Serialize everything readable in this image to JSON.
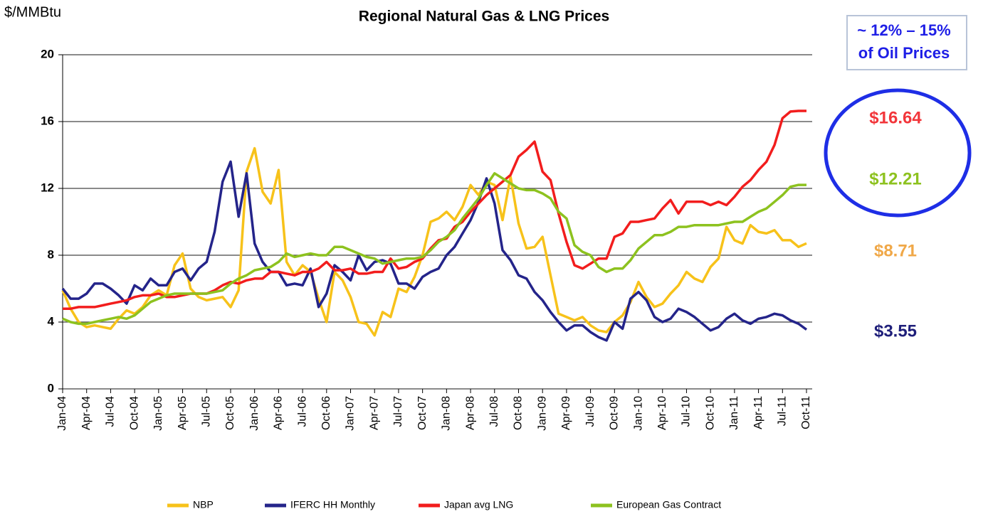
{
  "chart_data": {
    "type": "line",
    "title": "Regional Natural Gas & LNG Prices",
    "y_axis_label": "$/MMBtu",
    "callout": [
      "~ 12% – 15%",
      "of Oil Prices"
    ],
    "annotations": [
      {
        "text": "$16.64",
        "color": "#f2353a"
      },
      {
        "text": "$12.21",
        "color": "#8dc21f"
      },
      {
        "text": "$8.71",
        "color": "#f0a848"
      },
      {
        "text": "$3.55",
        "color": "#1f1f7a"
      }
    ],
    "categories": [
      "Jan-04",
      null,
      null,
      "Apr-04",
      null,
      null,
      "Jul-04",
      null,
      null,
      "Oct-04",
      null,
      null,
      "Jan-05",
      null,
      null,
      "Apr-05",
      null,
      null,
      "Jul-05",
      null,
      null,
      "Oct-05",
      null,
      null,
      "Jan-06",
      null,
      null,
      "Apr-06",
      null,
      null,
      "Jul-06",
      null,
      null,
      "Oct-06",
      null,
      null,
      "Jan-07",
      null,
      null,
      "Apr-07",
      null,
      null,
      "Jul-07",
      null,
      null,
      "Oct-07",
      null,
      null,
      "Jan-08",
      null,
      null,
      "Apr-08",
      null,
      null,
      "Jul-08",
      null,
      null,
      "Oct-08",
      null,
      null,
      "Jan-09",
      null,
      null,
      "Apr-09",
      null,
      null,
      "Jul-09",
      null,
      null,
      "Oct-09",
      null,
      null,
      "Jan-10",
      null,
      null,
      "Apr-10",
      null,
      null,
      "Jul-10",
      null,
      null,
      "Oct-10",
      null,
      null,
      "Jan-11",
      null,
      null,
      "Apr-11",
      null,
      null,
      "Jul-11",
      null,
      null,
      "Oct-11"
    ],
    "series": [
      {
        "name": "NBP",
        "color": "#f7c21a",
        "values": [
          5.9,
          4.8,
          4.0,
          3.7,
          3.8,
          3.7,
          3.6,
          4.2,
          4.7,
          4.5,
          4.9,
          5.6,
          5.9,
          5.6,
          7.4,
          8.1,
          6.0,
          5.5,
          5.3,
          5.4,
          5.5,
          4.9,
          5.9,
          13.0,
          14.4,
          11.8,
          11.1,
          13.1,
          7.6,
          6.8,
          7.4,
          7.0,
          5.4,
          4.0,
          7.0,
          6.5,
          5.5,
          4.0,
          3.9,
          3.2,
          4.6,
          4.3,
          6.0,
          5.8,
          6.7,
          8.0,
          10.0,
          10.2,
          10.6,
          10.1,
          10.9,
          12.2,
          11.6,
          12.4,
          12.2,
          10.1,
          12.7,
          9.9,
          8.4,
          8.5,
          9.1,
          6.8,
          4.5,
          4.3,
          4.1,
          4.3,
          3.8,
          3.5,
          3.4,
          4.0,
          4.4,
          5.2,
          6.4,
          5.5,
          4.9,
          5.1,
          5.7,
          6.2,
          7.0,
          6.6,
          6.4,
          7.3,
          7.8,
          9.7,
          8.9,
          8.7,
          9.8,
          9.4,
          9.3,
          9.5,
          8.9,
          8.9,
          8.5,
          8.71
        ]
      },
      {
        "name": "IFERC HH Monthly",
        "color": "#24248a",
        "values": [
          6.0,
          5.4,
          5.4,
          5.7,
          6.3,
          6.3,
          6.0,
          5.6,
          5.1,
          6.2,
          5.9,
          6.6,
          6.2,
          6.2,
          7.0,
          7.2,
          6.5,
          7.2,
          7.6,
          9.4,
          12.4,
          13.6,
          10.3,
          12.9,
          8.7,
          7.6,
          7.0,
          7.0,
          6.2,
          6.3,
          6.2,
          7.2,
          4.9,
          5.7,
          7.4,
          7.0,
          6.5,
          8.0,
          7.1,
          7.6,
          7.7,
          7.5,
          6.3,
          6.3,
          6.0,
          6.7,
          7.0,
          7.2,
          8.0,
          8.5,
          9.3,
          10.1,
          11.2,
          12.6,
          11.1,
          8.3,
          7.7,
          6.8,
          6.6,
          5.8,
          5.3,
          4.6,
          4.0,
          3.5,
          3.8,
          3.8,
          3.4,
          3.1,
          2.9,
          4.0,
          3.6,
          5.4,
          5.8,
          5.3,
          4.3,
          4.0,
          4.2,
          4.8,
          4.6,
          4.3,
          3.9,
          3.5,
          3.7,
          4.2,
          4.5,
          4.1,
          3.9,
          4.2,
          4.3,
          4.5,
          4.4,
          4.1,
          3.9,
          3.55
        ]
      },
      {
        "name": "Japan avg LNG",
        "color": "#f21d1d",
        "values": [
          4.8,
          4.8,
          4.9,
          4.9,
          4.9,
          5.0,
          5.1,
          5.2,
          5.3,
          5.5,
          5.6,
          5.6,
          5.7,
          5.5,
          5.5,
          5.6,
          5.7,
          5.7,
          5.7,
          5.9,
          6.2,
          6.4,
          6.3,
          6.5,
          6.6,
          6.6,
          7.0,
          7.0,
          6.9,
          6.8,
          7.0,
          7.0,
          7.2,
          7.6,
          7.1,
          7.1,
          7.2,
          6.9,
          6.9,
          7.0,
          7.0,
          7.8,
          7.2,
          7.3,
          7.6,
          7.8,
          8.4,
          8.9,
          9.0,
          9.7,
          10.0,
          10.6,
          11.1,
          11.6,
          12.0,
          12.4,
          12.8,
          13.9,
          14.3,
          14.8,
          13.0,
          12.5,
          10.5,
          8.8,
          7.4,
          7.2,
          7.5,
          7.8,
          7.8,
          9.1,
          9.3,
          10.0,
          10.0,
          10.1,
          10.2,
          10.8,
          11.3,
          10.5,
          11.2,
          11.2,
          11.2,
          11.0,
          11.2,
          11.0,
          11.5,
          12.1,
          12.5,
          13.1,
          13.6,
          14.6,
          16.2,
          16.6,
          16.64,
          16.64
        ]
      },
      {
        "name": "European Gas Contract",
        "color": "#8dc21f",
        "values": [
          4.2,
          4.0,
          3.9,
          3.9,
          4.0,
          4.1,
          4.2,
          4.3,
          4.2,
          4.4,
          4.8,
          5.2,
          5.4,
          5.6,
          5.7,
          5.7,
          5.7,
          5.7,
          5.7,
          5.8,
          5.9,
          6.3,
          6.6,
          6.8,
          7.1,
          7.2,
          7.3,
          7.6,
          8.1,
          7.9,
          8.0,
          8.1,
          8.0,
          8.0,
          8.5,
          8.5,
          8.3,
          8.1,
          7.9,
          7.8,
          7.5,
          7.6,
          7.7,
          7.8,
          7.8,
          7.9,
          8.3,
          8.8,
          9.1,
          9.5,
          10.2,
          10.8,
          11.4,
          12.2,
          12.9,
          12.6,
          12.3,
          12.0,
          11.9,
          11.9,
          11.7,
          11.4,
          10.6,
          10.2,
          8.6,
          8.2,
          8.0,
          7.3,
          7.0,
          7.2,
          7.2,
          7.7,
          8.4,
          8.8,
          9.2,
          9.2,
          9.4,
          9.7,
          9.7,
          9.8,
          9.8,
          9.8,
          9.8,
          9.9,
          10.0,
          10.0,
          10.3,
          10.6,
          10.8,
          11.2,
          11.6,
          12.1,
          12.21,
          12.21
        ]
      }
    ],
    "ylim": [
      0,
      20
    ],
    "yticks": [
      0,
      4,
      8,
      12,
      16,
      20
    ],
    "grid": true,
    "legend": "bottom"
  }
}
